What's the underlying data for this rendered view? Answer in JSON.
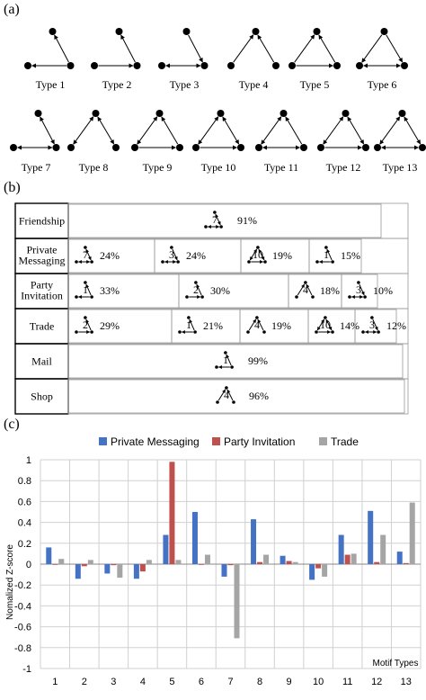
{
  "panel_a": {
    "label": "(a)",
    "motif_types": [
      "Type 1",
      "Type 2",
      "Type 3",
      "Type 4",
      "Type 5",
      "Type 6",
      "Type 7",
      "Type 8",
      "Type 9",
      "Type 10",
      "Type 11",
      "Type 12",
      "Type 13"
    ]
  },
  "panel_b": {
    "label": "(b)",
    "rows": [
      {
        "name": "Friendship",
        "cells": [
          {
            "motif": "7",
            "pct": "91%"
          }
        ]
      },
      {
        "name": "Private Messaging",
        "cells": [
          {
            "motif": "7",
            "pct": "24%"
          },
          {
            "motif": "3",
            "pct": "24%"
          },
          {
            "motif": "10",
            "pct": "19%"
          },
          {
            "motif": "1",
            "pct": "15%"
          }
        ]
      },
      {
        "name": "Party Invitation",
        "cells": [
          {
            "motif": "1",
            "pct": "33%"
          },
          {
            "motif": "2",
            "pct": "30%"
          },
          {
            "motif": "4",
            "pct": "18%"
          },
          {
            "motif": "3",
            "pct": "10%"
          }
        ]
      },
      {
        "name": "Trade",
        "cells": [
          {
            "motif": "2",
            "pct": "29%"
          },
          {
            "motif": "1",
            "pct": "21%"
          },
          {
            "motif": "4",
            "pct": "19%"
          },
          {
            "motif": "10",
            "pct": "14%"
          },
          {
            "motif": "3",
            "pct": "12%"
          }
        ]
      },
      {
        "name": "Mail",
        "cells": [
          {
            "motif": "1",
            "pct": "99%"
          }
        ]
      },
      {
        "name": "Shop",
        "cells": [
          {
            "motif": "4",
            "pct": "96%"
          }
        ]
      }
    ]
  },
  "panel_c": {
    "label": "(c)"
  },
  "chart_data": {
    "type": "bar",
    "title": "",
    "xlabel": "Motif Types",
    "ylabel": "Nomalized Z-score",
    "categories": [
      "1",
      "2",
      "3",
      "4",
      "5",
      "6",
      "7",
      "8",
      "9",
      "10",
      "11",
      "12",
      "13"
    ],
    "ylim": [
      -1,
      1
    ],
    "yticks": [
      "1",
      "0.8",
      "0.6",
      "0.4",
      "0.2",
      "0",
      "-0.2",
      "-0.4",
      "-0.6",
      "-0.8",
      "-1"
    ],
    "grid": true,
    "legend_position": "top",
    "series": [
      {
        "name": "Private Messaging",
        "color": "#4472C4",
        "values": [
          0.16,
          -0.14,
          -0.09,
          -0.14,
          0.28,
          0.5,
          -0.12,
          0.43,
          0.08,
          -0.15,
          0.28,
          0.51,
          0.12
        ]
      },
      {
        "name": "Party Invitation",
        "color": "#C0504D",
        "values": [
          0.0,
          -0.02,
          -0.01,
          -0.07,
          0.98,
          0.0,
          -0.01,
          0.02,
          0.03,
          -0.04,
          0.09,
          0.02,
          0.01
        ]
      },
      {
        "name": "Trade",
        "color": "#A5A5A5",
        "values": [
          0.05,
          0.04,
          -0.13,
          0.04,
          0.04,
          0.09,
          -0.71,
          0.09,
          0.02,
          -0.12,
          0.1,
          0.28,
          0.59
        ]
      }
    ]
  }
}
